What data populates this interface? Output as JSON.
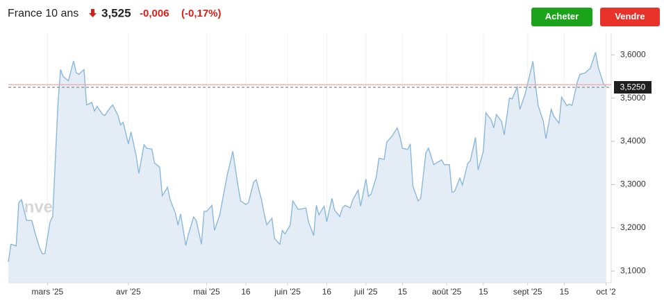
{
  "header": {
    "title": "France 10 ans",
    "price": "3,525",
    "change": "-0,006",
    "change_pct": "(-0,17%)"
  },
  "buttons": [
    "Acheter",
    "Vendre"
  ],
  "chart_data": {
    "type": "area",
    "watermark": "Investing.com",
    "color": "#8ab8da",
    "fill_color": "#e4edf5",
    "x": [
      "2025-02-14",
      "2025-02-15",
      "2025-02-17",
      "2025-02-18",
      "2025-02-19",
      "2025-02-21",
      "2025-02-23",
      "2025-02-24",
      "2025-02-26",
      "2025-02-27",
      "2025-02-28",
      "2025-03-02",
      "2025-03-03",
      "2025-03-05",
      "2025-03-06",
      "2025-03-07",
      "2025-03-09",
      "2025-03-11",
      "2025-03-12",
      "2025-03-13",
      "2025-03-15",
      "2025-03-16",
      "2025-03-18",
      "2025-03-19",
      "2025-03-20",
      "2025-03-22",
      "2025-03-23",
      "2025-03-25",
      "2025-03-26",
      "2025-03-28",
      "2025-03-29",
      "2025-03-30",
      "2025-04-01",
      "2025-04-02",
      "2025-04-04",
      "2025-04-05",
      "2025-04-07",
      "2025-04-08",
      "2025-04-10",
      "2025-04-11",
      "2025-04-13",
      "2025-04-14",
      "2025-04-16",
      "2025-04-17",
      "2025-04-19",
      "2025-04-20",
      "2025-04-21",
      "2025-04-23",
      "2025-04-24",
      "2025-04-26",
      "2025-04-27",
      "2025-04-29",
      "2025-04-30",
      "2025-05-01",
      "2025-05-03",
      "2025-05-04",
      "2025-05-06",
      "2025-05-07",
      "2025-05-09",
      "2025-05-10",
      "2025-05-11",
      "2025-05-13",
      "2025-05-14",
      "2025-05-16",
      "2025-05-17",
      "2025-05-19",
      "2025-05-20",
      "2025-05-22",
      "2025-05-23",
      "2025-05-24",
      "2025-05-26",
      "2025-05-27",
      "2025-05-29",
      "2025-05-30",
      "2025-05-31",
      "2025-06-02",
      "2025-06-03",
      "2025-06-05",
      "2025-06-06",
      "2025-06-08",
      "2025-06-09",
      "2025-06-11",
      "2025-06-12",
      "2025-06-13",
      "2025-06-15",
      "2025-06-16",
      "2025-06-18",
      "2025-06-19",
      "2025-06-21",
      "2025-06-22",
      "2025-06-23",
      "2025-06-25",
      "2025-06-26",
      "2025-06-28",
      "2025-06-29",
      "2025-07-01",
      "2025-07-02",
      "2025-07-03",
      "2025-07-05",
      "2025-07-06",
      "2025-07-08",
      "2025-07-09",
      "2025-07-11",
      "2025-07-13",
      "2025-07-14",
      "2025-07-15",
      "2025-07-17",
      "2025-07-18",
      "2025-07-19",
      "2025-07-21",
      "2025-07-22",
      "2025-07-24",
      "2025-07-25",
      "2025-07-27",
      "2025-07-28",
      "2025-07-30",
      "2025-07-31",
      "2025-08-02",
      "2025-08-03",
      "2025-08-04",
      "2025-08-06",
      "2025-08-07",
      "2025-08-09",
      "2025-08-10",
      "2025-08-12",
      "2025-08-13",
      "2025-08-15",
      "2025-08-16",
      "2025-08-18",
      "2025-08-19",
      "2025-08-20",
      "2025-08-22",
      "2025-08-23",
      "2025-08-25",
      "2025-08-26",
      "2025-08-28",
      "2025-08-29",
      "2025-08-31",
      "2025-09-01",
      "2025-09-03",
      "2025-09-04",
      "2025-09-05",
      "2025-09-07",
      "2025-09-08",
      "2025-09-10",
      "2025-09-11",
      "2025-09-13",
      "2025-09-14",
      "2025-09-16",
      "2025-09-17",
      "2025-09-18",
      "2025-09-20",
      "2025-09-21",
      "2025-09-23",
      "2025-09-24",
      "2025-09-25",
      "2025-09-27",
      "2025-09-28",
      "2025-09-30",
      "2025-10-01"
    ],
    "values": [
      3.121,
      3.162,
      3.158,
      3.258,
      3.265,
      3.217,
      3.217,
      3.193,
      3.153,
      3.14,
      3.14,
      3.214,
      3.226,
      3.486,
      3.566,
      3.55,
      3.54,
      3.586,
      3.559,
      3.555,
      3.566,
      3.484,
      3.49,
      3.47,
      3.481,
      3.463,
      3.46,
      3.478,
      3.484,
      3.46,
      3.438,
      3.444,
      3.394,
      3.422,
      3.366,
      3.326,
      3.392,
      3.384,
      3.382,
      3.35,
      3.34,
      3.274,
      3.294,
      3.265,
      3.234,
      3.206,
      3.232,
      3.159,
      3.185,
      3.225,
      3.217,
      3.162,
      3.238,
      3.238,
      3.252,
      3.194,
      3.23,
      3.262,
      3.326,
      3.35,
      3.377,
      3.297,
      3.262,
      3.254,
      3.258,
      3.306,
      3.311,
      3.265,
      3.234,
      3.207,
      3.222,
      3.175,
      3.162,
      3.194,
      3.186,
      3.206,
      3.262,
      3.243,
      3.243,
      3.246,
      3.214,
      3.182,
      3.252,
      3.23,
      3.25,
      3.214,
      3.268,
      3.241,
      3.226,
      3.246,
      3.252,
      3.246,
      3.265,
      3.287,
      3.25,
      3.313,
      3.273,
      3.278,
      3.318,
      3.361,
      3.358,
      3.398,
      3.412,
      3.431,
      3.412,
      3.384,
      3.381,
      3.394,
      3.297,
      3.262,
      3.268,
      3.374,
      3.384,
      3.346,
      3.35,
      3.357,
      3.346,
      3.346,
      3.282,
      3.284,
      3.315,
      3.299,
      3.349,
      3.355,
      3.409,
      3.334,
      3.377,
      3.466,
      3.45,
      3.431,
      3.462,
      3.446,
      3.415,
      3.5,
      3.498,
      3.526,
      3.474,
      3.509,
      3.534,
      3.585,
      3.53,
      3.483,
      3.446,
      3.406,
      3.474,
      3.458,
      3.442,
      3.502,
      3.483,
      3.486,
      3.483,
      3.537,
      3.555,
      3.558,
      3.564,
      3.569,
      3.606,
      3.572,
      3.534,
      3.526
    ],
    "xlim": [
      "2025-02-14",
      "2025-10-03"
    ],
    "xticks": [
      {
        "value": "2025-03-01",
        "label": "mars '25"
      },
      {
        "value": "2025-04-01",
        "label": "avr '25"
      },
      {
        "value": "2025-05-01",
        "label": "mai '25"
      },
      {
        "value": "2025-05-16",
        "label": "16"
      },
      {
        "value": "2025-06-01",
        "label": "juin '25"
      },
      {
        "value": "2025-06-16",
        "label": "16"
      },
      {
        "value": "2025-07-01",
        "label": "juil '25"
      },
      {
        "value": "2025-07-15",
        "label": "15"
      },
      {
        "value": "2025-08-01",
        "label": "août '25"
      },
      {
        "value": "2025-08-15",
        "label": "15"
      },
      {
        "value": "2025-09-01",
        "label": "sept '25"
      },
      {
        "value": "2025-09-15",
        "label": "15"
      },
      {
        "value": "2025-10-01",
        "label": "oct '2"
      }
    ],
    "ylim": [
      3.073,
      3.65
    ],
    "yticks": [
      {
        "value": 3.1,
        "label": "3,1000"
      },
      {
        "value": 3.2,
        "label": "3,2000"
      },
      {
        "value": 3.3,
        "label": "3,3000"
      },
      {
        "value": 3.4,
        "label": "3,4000"
      },
      {
        "value": 3.5,
        "label": "3,5000"
      },
      {
        "value": 3.6,
        "label": "3,6000"
      }
    ],
    "reference_line": {
      "value": 3.531,
      "color": "#f2a3a3"
    },
    "current": {
      "value": 3.525,
      "label": "3,5250"
    },
    "grid": "x"
  }
}
